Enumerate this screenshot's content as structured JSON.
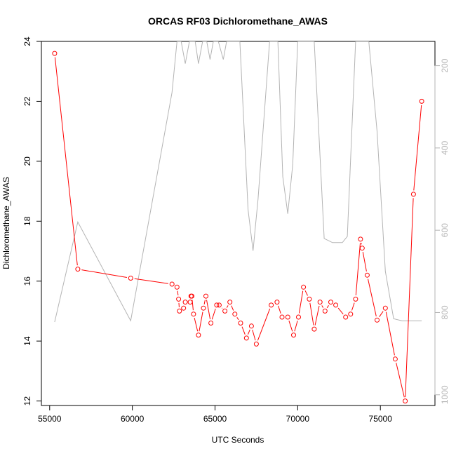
{
  "chart_data": {
    "type": "line",
    "title": "ORCAS RF03 Dichloromethane_AWAS",
    "xlabel": "UTC Seconds",
    "ylabel": "Dichloromethane_AWAS",
    "xlim": [
      54500,
      78300
    ],
    "ylim": [
      11.85,
      24.0
    ],
    "x_ticks": [
      55000,
      60000,
      65000,
      70000,
      75000
    ],
    "y_ticks": [
      12,
      14,
      16,
      18,
      20,
      22,
      24
    ],
    "y2_ticks": [
      200,
      400,
      600,
      800,
      1000
    ],
    "y2_reversed": true,
    "y2_range_top_bottom": [
      141,
      1026
    ],
    "grid": false,
    "series": [
      {
        "type": "line-points",
        "color": "#ff0000",
        "x": [
          55300,
          56700,
          59900,
          62400,
          62700,
          62800,
          62850,
          63100,
          63200,
          63500,
          63550,
          63600,
          63700,
          64000,
          64300,
          64450,
          64750,
          65100,
          65250,
          65600,
          65900,
          66200,
          66550,
          66900,
          67200,
          67500,
          68400,
          68750,
          69050,
          69400,
          69750,
          70050,
          70350,
          70700,
          71000,
          71350,
          71650,
          72000,
          72300,
          72900,
          73200,
          73500,
          73800,
          73900,
          74200,
          74800,
          75300,
          75900,
          76500,
          77000,
          77500
        ],
        "y": [
          23.6,
          16.4,
          16.1,
          15.9,
          15.8,
          15.4,
          15.0,
          15.1,
          15.3,
          15.3,
          15.5,
          15.5,
          14.9,
          14.2,
          15.1,
          15.5,
          14.6,
          15.2,
          15.2,
          15.0,
          15.3,
          14.9,
          14.6,
          14.1,
          14.5,
          13.9,
          15.2,
          15.3,
          14.8,
          14.8,
          14.2,
          14.8,
          15.8,
          15.4,
          14.4,
          15.3,
          15.0,
          15.3,
          15.2,
          14.8,
          14.9,
          15.4,
          17.4,
          17.1,
          16.2,
          14.7,
          15.1,
          13.4,
          12.0,
          18.9,
          22.0
        ]
      },
      {
        "type": "line",
        "axis": "right",
        "color": "#b4b4b4",
        "x": [
          55300,
          56700,
          59900,
          62400,
          62700,
          62950,
          63200,
          63450,
          63800,
          64000,
          64250,
          64500,
          64700,
          64900,
          65200,
          65500,
          65700,
          66000,
          66500,
          67000,
          67300,
          67600,
          68300,
          68800,
          69100,
          69400,
          69700,
          70000,
          70400,
          70700,
          71000,
          71300,
          71600,
          72100,
          72700,
          73000,
          73500,
          73700,
          74000,
          74300,
          74800,
          75300,
          75800,
          76300,
          76800,
          77500
        ],
        "y": [
          823,
          580,
          820,
          265,
          141,
          141,
          195,
          141,
          141,
          195,
          141,
          141,
          185,
          141,
          141,
          185,
          141,
          141,
          141,
          550,
          650,
          525,
          141,
          141,
          470,
          560,
          440,
          141,
          141,
          141,
          141,
          380,
          620,
          630,
          630,
          615,
          141,
          141,
          141,
          141,
          360,
          700,
          815,
          820,
          820,
          820
        ]
      }
    ]
  }
}
